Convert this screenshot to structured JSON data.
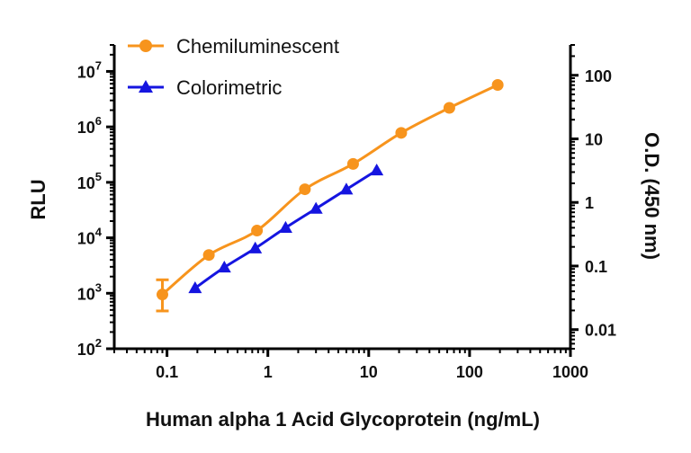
{
  "chart_data": {
    "type": "line",
    "xlabel": "Human alpha 1 Acid Glycoprotein (ng/mL)",
    "ylabel": "RLU",
    "y2label": "O.D. (450 nm)",
    "x_scale": "log",
    "y_scale": "log",
    "y2_scale": "log",
    "xlim": [
      0.03,
      1000
    ],
    "ylim": [
      100,
      30000000
    ],
    "y2lim": [
      0.005,
      300
    ],
    "grid": false,
    "legend_position": "top-left",
    "x_ticks": [
      {
        "value": 0.1,
        "label": "0.1"
      },
      {
        "value": 1,
        "label": "1"
      },
      {
        "value": 10,
        "label": "10"
      },
      {
        "value": 100,
        "label": "100"
      },
      {
        "value": 1000,
        "label": "1000"
      }
    ],
    "y_ticks": [
      {
        "value": 100,
        "base": "10",
        "exp": "2"
      },
      {
        "value": 1000,
        "base": "10",
        "exp": "3"
      },
      {
        "value": 10000,
        "base": "10",
        "exp": "4"
      },
      {
        "value": 100000,
        "base": "10",
        "exp": "5"
      },
      {
        "value": 1000000,
        "base": "10",
        "exp": "6"
      },
      {
        "value": 10000000,
        "base": "10",
        "exp": "7"
      }
    ],
    "y2_ticks": [
      {
        "value": 0.01,
        "label": "0.01"
      },
      {
        "value": 0.1,
        "label": "0.1"
      },
      {
        "value": 1,
        "label": "1"
      },
      {
        "value": 10,
        "label": "10"
      },
      {
        "value": 100,
        "label": "100"
      }
    ],
    "series": [
      {
        "name": "Chemiluminescent",
        "axis": "left",
        "color": "#F7941D",
        "marker": "circle",
        "x": [
          0.09,
          0.26,
          0.78,
          2.33,
          7,
          21,
          63,
          190
        ],
        "y": [
          950,
          4900,
          13500,
          75000,
          215000,
          780000,
          2200000,
          5700000
        ],
        "error_low": [
          480,
          null,
          null,
          null,
          null,
          null,
          null,
          null
        ],
        "error_high": [
          1750,
          null,
          null,
          null,
          null,
          null,
          null,
          null
        ]
      },
      {
        "name": "Colorimetric",
        "axis": "right",
        "color": "#1515E0",
        "marker": "triangle",
        "x": [
          0.19,
          0.37,
          0.75,
          1.5,
          3,
          6,
          12
        ],
        "y": [
          0.045,
          0.095,
          0.19,
          0.4,
          0.8,
          1.6,
          3.2
        ]
      }
    ]
  }
}
